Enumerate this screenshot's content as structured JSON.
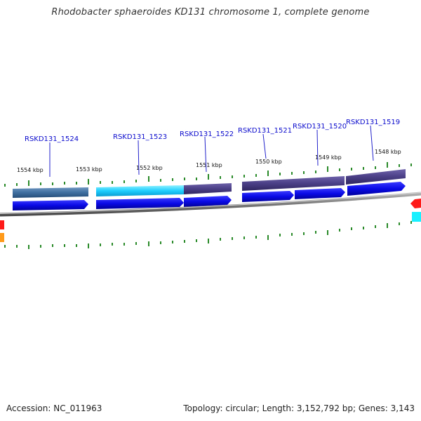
{
  "title": "Rhodobacter sphaeroides KD131 chromosome 1, complete genome",
  "footer": {
    "accession": "Accession: NC_011963",
    "summary": "Topology: circular; Length: 3,152,792 bp; Genes: 3,143"
  },
  "genes": [
    {
      "label": "RSKD131_1524"
    },
    {
      "label": "RSKD131_1523"
    },
    {
      "label": "RSKD131_1522"
    },
    {
      "label": "RSKD131_1521"
    },
    {
      "label": "RSKD131_1520"
    },
    {
      "label": "RSKD131_1519"
    }
  ],
  "kbp_ticks": [
    "1554 kbp",
    "1553 kbp",
    "1552 kbp",
    "1551 kbp",
    "1550 kbp",
    "1549 kbp",
    "1548 kbp"
  ],
  "colors": {
    "gene_label": "#0a0acd",
    "leader_line": "#2222cc",
    "tick": "#2a8a2a",
    "backbone": "#808080",
    "cds_arrow": "#0a0ae6",
    "cog_steel": "#3f6fa0",
    "cog_cyan": "#1ecfff",
    "cog_purple": "#4a3f86",
    "edge_red": "#ff1a1a",
    "edge_cyan": "#19f0ff",
    "edge_orange": "#ff9a1a"
  }
}
